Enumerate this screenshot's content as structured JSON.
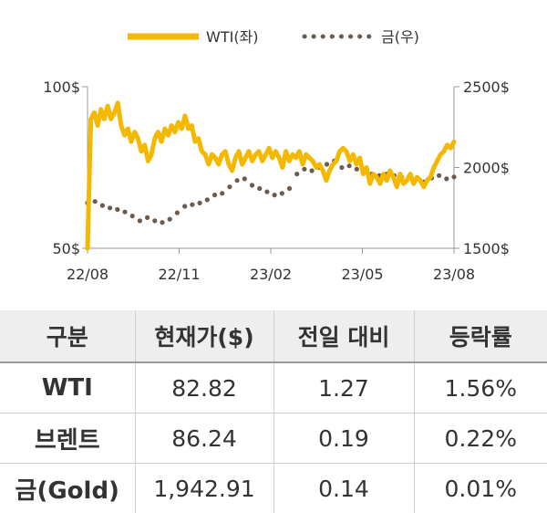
{
  "chart_data": {
    "type": "line",
    "legend_position": "top-center",
    "x_tick_labels": [
      "22/08",
      "22/11",
      "23/02",
      "23/05",
      "23/08"
    ],
    "y_left": {
      "ticks": [
        "100$",
        "50$"
      ],
      "range": [
        50,
        100
      ]
    },
    "y_right": {
      "ticks": [
        "2500$",
        "2000$",
        "1500$"
      ],
      "range": [
        1500,
        2500
      ]
    },
    "grid": false,
    "series": [
      {
        "name": "WTI(좌)",
        "axis": "left",
        "style": "solid",
        "color": "#F5B800",
        "values": [
          50,
          90,
          92,
          88,
          93,
          90,
          94,
          90,
          92,
          95,
          88,
          85,
          87,
          83,
          86,
          84,
          80,
          82,
          77,
          79,
          84,
          86,
          83,
          87,
          85,
          88,
          86,
          89,
          87,
          91,
          87,
          88,
          83,
          84,
          80,
          79,
          76,
          79,
          78,
          76,
          79,
          80,
          76,
          74,
          78,
          80,
          76,
          78,
          80,
          77,
          79,
          80,
          77,
          79,
          81,
          78,
          80,
          78,
          75,
          80,
          77,
          79,
          78,
          80,
          76,
          79,
          78,
          77,
          75,
          76,
          74,
          71,
          74,
          76,
          77,
          80,
          81,
          80,
          77,
          79,
          76,
          78,
          73,
          75,
          70,
          73,
          72,
          70,
          73,
          71,
          74,
          72,
          69,
          73,
          70,
          71,
          73,
          70,
          72,
          71,
          69,
          71,
          72,
          75,
          77,
          79,
          80,
          82,
          81,
          83
        ]
      },
      {
        "name": "금(우)",
        "axis": "right",
        "style": "dotted",
        "color": "#6B5A4E",
        "values": [
          1780,
          1790,
          1765,
          1750,
          1740,
          1725,
          1700,
          1670,
          1690,
          1670,
          1660,
          1680,
          1720,
          1760,
          1770,
          1780,
          1800,
          1830,
          1840,
          1880,
          1920,
          1930,
          1890,
          1870,
          1850,
          1830,
          1840,
          1870,
          1960,
          1990,
          1980,
          2000,
          2020,
          2040,
          2000,
          2010,
          1990,
          1980,
          1960,
          1950,
          1960,
          1950,
          1940,
          1945,
          1930,
          1910,
          1935,
          1950,
          1930,
          1942
        ]
      }
    ]
  },
  "table": {
    "headers": [
      "구분",
      "현재가($)",
      "전일 대비",
      "등락률"
    ],
    "rows": [
      {
        "label": "WTI",
        "price": "82.82",
        "change": "1.27",
        "pct": "1.56%"
      },
      {
        "label": "브렌트",
        "price": "86.24",
        "change": "0.19",
        "pct": "0.22%"
      },
      {
        "label": "금(Gold)",
        "price": "1,942.91",
        "change": "0.14",
        "pct": "0.01%"
      }
    ]
  }
}
